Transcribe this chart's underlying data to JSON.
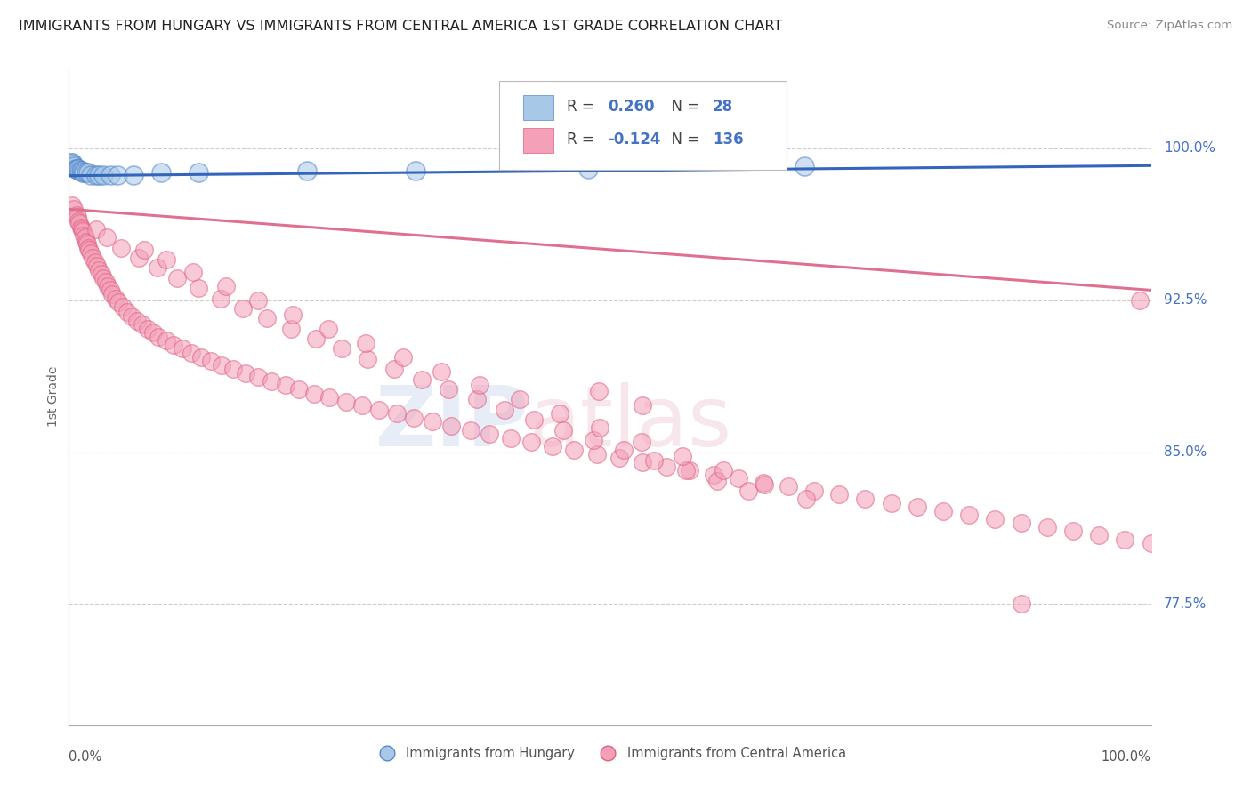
{
  "title": "IMMIGRANTS FROM HUNGARY VS IMMIGRANTS FROM CENTRAL AMERICA 1ST GRADE CORRELATION CHART",
  "source": "Source: ZipAtlas.com",
  "ylabel": "1st Grade",
  "ytick_labels": [
    "100.0%",
    "92.5%",
    "85.0%",
    "77.5%"
  ],
  "ytick_values": [
    1.0,
    0.925,
    0.85,
    0.775
  ],
  "xmin": 0.0,
  "xmax": 1.0,
  "ymin": 0.715,
  "ymax": 1.04,
  "hungary_color": "#a8c8e8",
  "central_america_color": "#f4a0b8",
  "hungary_edge_color": "#5588cc",
  "central_america_edge_color": "#e06080",
  "hungary_line_color": "#3366bb",
  "central_america_line_color": "#e07090",
  "hungary_x": [
    0.002,
    0.003,
    0.004,
    0.005,
    0.006,
    0.007,
    0.008,
    0.009,
    0.01,
    0.011,
    0.012,
    0.013,
    0.014,
    0.016,
    0.018,
    0.02,
    0.025,
    0.028,
    0.032,
    0.038,
    0.045,
    0.06,
    0.085,
    0.12,
    0.22,
    0.32,
    0.48,
    0.68
  ],
  "hungary_y": [
    0.993,
    0.993,
    0.992,
    0.991,
    0.99,
    0.99,
    0.99,
    0.99,
    0.989,
    0.989,
    0.989,
    0.988,
    0.988,
    0.988,
    0.988,
    0.987,
    0.987,
    0.987,
    0.987,
    0.987,
    0.987,
    0.987,
    0.988,
    0.988,
    0.989,
    0.989,
    0.99,
    0.991
  ],
  "central_america_x": [
    0.003,
    0.005,
    0.007,
    0.008,
    0.009,
    0.01,
    0.011,
    0.012,
    0.013,
    0.014,
    0.015,
    0.016,
    0.017,
    0.018,
    0.019,
    0.02,
    0.022,
    0.024,
    0.026,
    0.028,
    0.03,
    0.032,
    0.034,
    0.036,
    0.038,
    0.04,
    0.043,
    0.046,
    0.05,
    0.054,
    0.058,
    0.063,
    0.068,
    0.073,
    0.078,
    0.083,
    0.09,
    0.097,
    0.105,
    0.113,
    0.122,
    0.131,
    0.141,
    0.152,
    0.163,
    0.175,
    0.187,
    0.2,
    0.213,
    0.227,
    0.241,
    0.256,
    0.271,
    0.287,
    0.303,
    0.319,
    0.336,
    0.353,
    0.371,
    0.389,
    0.408,
    0.427,
    0.447,
    0.467,
    0.488,
    0.509,
    0.53,
    0.552,
    0.574,
    0.596,
    0.619,
    0.642,
    0.665,
    0.689,
    0.712,
    0.736,
    0.76,
    0.784,
    0.808,
    0.832,
    0.856,
    0.88,
    0.904,
    0.928,
    0.952,
    0.976,
    1.0,
    0.025,
    0.035,
    0.048,
    0.065,
    0.082,
    0.1,
    0.12,
    0.14,
    0.161,
    0.183,
    0.205,
    0.228,
    0.252,
    0.276,
    0.301,
    0.326,
    0.351,
    0.377,
    0.403,
    0.43,
    0.457,
    0.485,
    0.513,
    0.541,
    0.57,
    0.599,
    0.628,
    0.07,
    0.09,
    0.115,
    0.145,
    0.175,
    0.207,
    0.24,
    0.274,
    0.309,
    0.344,
    0.38,
    0.417,
    0.454,
    0.491,
    0.529,
    0.567,
    0.605,
    0.643,
    0.681,
    0.49,
    0.53,
    0.99,
    0.88
  ],
  "central_america_y": [
    0.972,
    0.97,
    0.967,
    0.966,
    0.964,
    0.963,
    0.961,
    0.96,
    0.959,
    0.957,
    0.956,
    0.954,
    0.953,
    0.951,
    0.95,
    0.948,
    0.946,
    0.944,
    0.942,
    0.94,
    0.938,
    0.936,
    0.934,
    0.932,
    0.93,
    0.928,
    0.926,
    0.924,
    0.922,
    0.919,
    0.917,
    0.915,
    0.913,
    0.911,
    0.909,
    0.907,
    0.905,
    0.903,
    0.901,
    0.899,
    0.897,
    0.895,
    0.893,
    0.891,
    0.889,
    0.887,
    0.885,
    0.883,
    0.881,
    0.879,
    0.877,
    0.875,
    0.873,
    0.871,
    0.869,
    0.867,
    0.865,
    0.863,
    0.861,
    0.859,
    0.857,
    0.855,
    0.853,
    0.851,
    0.849,
    0.847,
    0.845,
    0.843,
    0.841,
    0.839,
    0.837,
    0.835,
    0.833,
    0.831,
    0.829,
    0.827,
    0.825,
    0.823,
    0.821,
    0.819,
    0.817,
    0.815,
    0.813,
    0.811,
    0.809,
    0.807,
    0.805,
    0.96,
    0.956,
    0.951,
    0.946,
    0.941,
    0.936,
    0.931,
    0.926,
    0.921,
    0.916,
    0.911,
    0.906,
    0.901,
    0.896,
    0.891,
    0.886,
    0.881,
    0.876,
    0.871,
    0.866,
    0.861,
    0.856,
    0.851,
    0.846,
    0.841,
    0.836,
    0.831,
    0.95,
    0.945,
    0.939,
    0.932,
    0.925,
    0.918,
    0.911,
    0.904,
    0.897,
    0.89,
    0.883,
    0.876,
    0.869,
    0.862,
    0.855,
    0.848,
    0.841,
    0.834,
    0.827,
    0.88,
    0.873,
    0.925,
    0.775
  ],
  "trend_hungary_x0": 0.0,
  "trend_hungary_x1": 1.0,
  "trend_hungary_y0": 0.9865,
  "trend_hungary_y1": 0.9915,
  "trend_ca_x0": 0.0,
  "trend_ca_x1": 1.0,
  "trend_ca_y0": 0.97,
  "trend_ca_y1": 0.93
}
